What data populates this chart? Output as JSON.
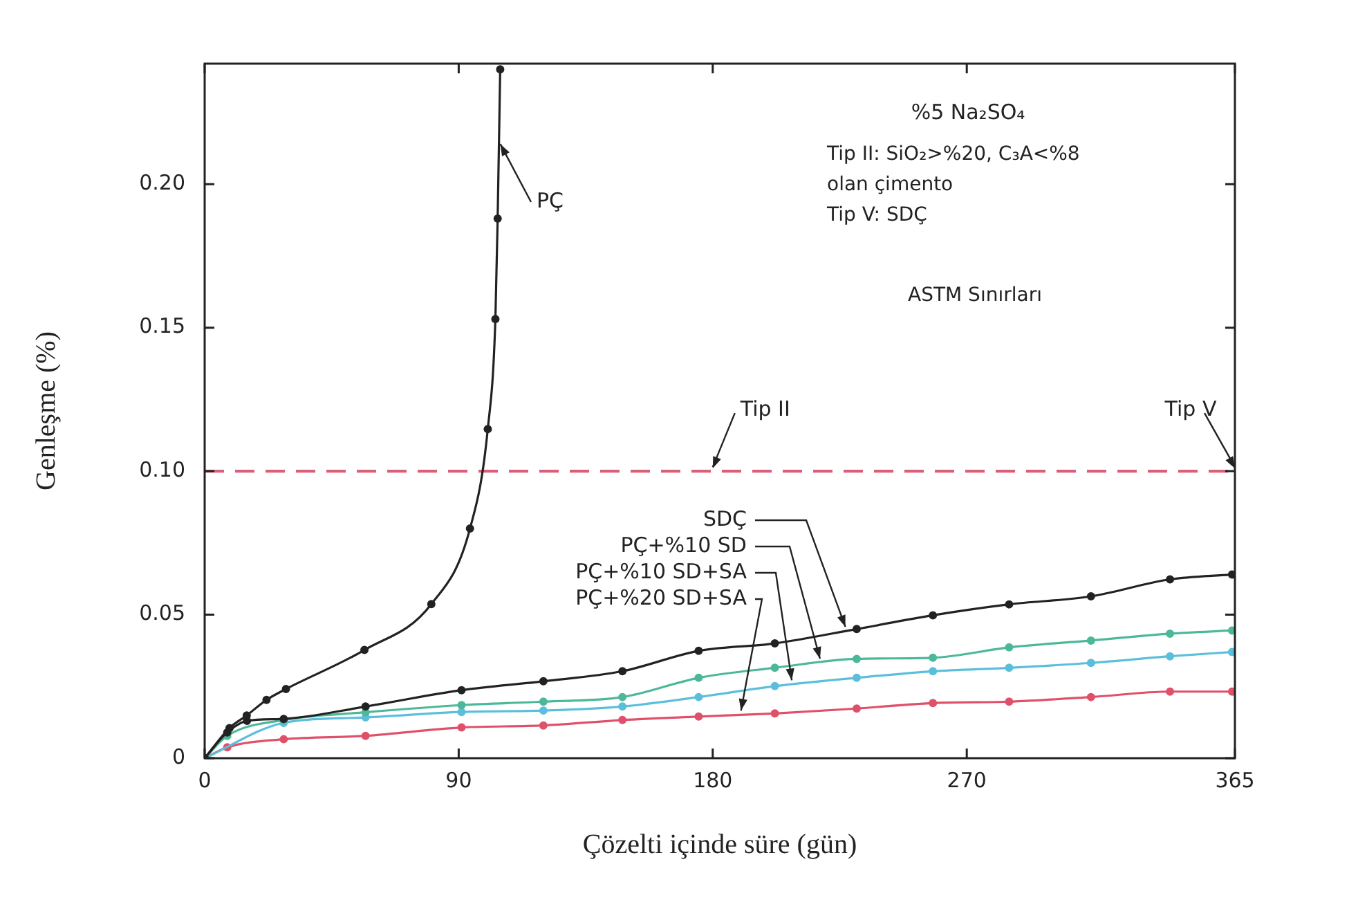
{
  "chart_data": {
    "type": "line",
    "xlabel": "Çözelti içinde süre (gün)",
    "ylabel": "Genleşme (%)",
    "xlim": [
      0,
      365
    ],
    "xticks": [
      0,
      90,
      180,
      270,
      365
    ],
    "ylim": [
      0,
      0.242
    ],
    "yticks": [
      0,
      0.05,
      {
        "value": 0.1,
        "label": "0.10"
      },
      0.15,
      {
        "value": 0.2,
        "label": "0.20"
      }
    ],
    "grid": false,
    "legend": false,
    "marker": "circle",
    "line_style": "solid",
    "series": [
      {
        "name": "PÇ",
        "color": "#222222",
        "x": [
          0,
          8.8,
          14.9,
          21.9,
          28.8,
          56.6,
          80.3,
          94,
          100.3,
          103,
          103.8,
          104.7
        ],
        "values": [
          0,
          0.0105,
          0.0149,
          0.0203,
          0.0241,
          0.0377,
          0.0537,
          0.08,
          0.1147,
          0.153,
          0.188,
          0.24
        ]
      },
      {
        "name": "SDÇ",
        "color": "#222222",
        "x": [
          0,
          8,
          15,
          28,
          57,
          91,
          120,
          148,
          175,
          202,
          231,
          258,
          285,
          314,
          342,
          364
        ],
        "values": [
          0,
          0.009,
          0.013,
          0.0137,
          0.018,
          0.0237,
          0.0268,
          0.0303,
          0.0374,
          0.04,
          0.045,
          0.0498,
          0.0536,
          0.0564,
          0.0623,
          0.064
        ]
      },
      {
        "name": "PÇ+%10 SD",
        "color": "#4cb89a",
        "x": [
          0,
          8,
          28,
          57,
          91,
          120,
          148,
          175,
          202,
          231,
          258,
          285,
          314,
          342,
          364
        ],
        "values": [
          0,
          0.0078,
          0.0133,
          0.016,
          0.0185,
          0.0197,
          0.0213,
          0.028,
          0.0315,
          0.0346,
          0.035,
          0.0386,
          0.041,
          0.0434,
          0.0445
        ]
      },
      {
        "name": "PÇ+%10 SD+SA",
        "color": "#5bbfdc",
        "x": [
          0,
          28,
          57,
          91,
          120,
          148,
          175,
          202,
          231,
          258,
          285,
          314,
          342,
          364
        ],
        "values": [
          0,
          0.0123,
          0.0142,
          0.0161,
          0.0166,
          0.018,
          0.0213,
          0.0251,
          0.028,
          0.0303,
          0.0315,
          0.0332,
          0.0355,
          0.037
        ]
      },
      {
        "name": "PÇ+%20 SD+SA",
        "color": "#e0506a",
        "x": [
          0,
          8,
          28,
          57,
          91,
          120,
          148,
          175,
          202,
          231,
          258,
          285,
          314,
          342,
          364
        ],
        "values": [
          0,
          0.0038,
          0.0066,
          0.0078,
          0.0107,
          0.0114,
          0.0133,
          0.0145,
          0.0156,
          0.0173,
          0.0192,
          0.0197,
          0.0213,
          0.0232,
          0.0232
        ]
      }
    ],
    "ref_lines": [
      {
        "axis": "y",
        "value": 0.1,
        "color": "#d9607a",
        "line_style": "dashed"
      }
    ],
    "annotations": [
      "%5 Na₂SO₄",
      "Tip II: SiO₂>%20, C₃A<%8",
      "olan çimento",
      "Tip V: SDÇ",
      "ASTM Sınırları",
      {
        "text": "Tip II",
        "x": 180,
        "y": 0.1
      },
      {
        "text": "Tip V",
        "x": 365,
        "y": 0.1
      }
    ]
  }
}
